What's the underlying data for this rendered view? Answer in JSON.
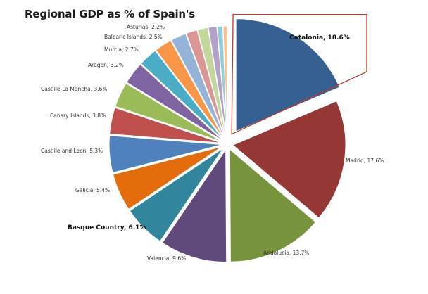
{
  "chart_data": {
    "type": "pie",
    "title": "Regional GDP as % of Spain's",
    "slices": [
      {
        "name": "Catalonia",
        "value": 18.6,
        "label": "Catalonia, 18.6%",
        "color": "#376092",
        "bold": true,
        "highlighted": true
      },
      {
        "name": "Madrid",
        "value": 17.6,
        "label": "Madrid, 17.6%",
        "color": "#953735",
        "bold": false
      },
      {
        "name": "Andalucia",
        "value": 13.7,
        "label": "Andalucia, 13.7%",
        "color": "#77933C",
        "bold": false
      },
      {
        "name": "Valencia",
        "value": 9.6,
        "label": "Valencia, 9.6%",
        "color": "#604A7B",
        "bold": false
      },
      {
        "name": "Basque Country",
        "value": 6.1,
        "label": "Basque Country, 6.1%",
        "color": "#31859C",
        "bold": true
      },
      {
        "name": "Galicia",
        "value": 5.4,
        "label": "Galicia, 5.4%",
        "color": "#E46C0A",
        "bold": false
      },
      {
        "name": "Castille and Leon",
        "value": 5.3,
        "label": "Castille and Leon, 5.3%",
        "color": "#4F81BD",
        "bold": false
      },
      {
        "name": "Canary Islands",
        "value": 3.8,
        "label": "Canary Islands, 3.8%",
        "color": "#C0504D",
        "bold": false
      },
      {
        "name": "Castille-La Mancha",
        "value": 3.6,
        "label": "Castille-La Mancha, 3.6%",
        "color": "#9BBB59",
        "bold": false
      },
      {
        "name": "Aragon",
        "value": 3.2,
        "label": "Aragon, 3.2%",
        "color": "#8064A2",
        "bold": false
      },
      {
        "name": "Murcia",
        "value": 2.7,
        "label": "Murcia, 2.7%",
        "color": "#4BACC6",
        "bold": false
      },
      {
        "name": "Balearic Islands",
        "value": 2.5,
        "label": "Balearic Islands, 2.5%",
        "color": "#F79646",
        "bold": false
      },
      {
        "name": "Asturias",
        "value": 2.2,
        "label": "Asturias, 2.2%",
        "color": "#95B3D7",
        "bold": false
      },
      {
        "name": "Other 1",
        "value": 1.6,
        "label": "",
        "color": "#D99694",
        "bold": false
      },
      {
        "name": "Other 2",
        "value": 1.5,
        "label": "",
        "color": "#C3D69B",
        "bold": false
      },
      {
        "name": "Other 3",
        "value": 1.2,
        "label": "",
        "color": "#B3A2C7",
        "bold": false
      },
      {
        "name": "Other 4",
        "value": 0.8,
        "label": "",
        "color": "#93CDDD",
        "bold": false
      },
      {
        "name": "Other 5",
        "value": 0.6,
        "label": "",
        "color": "#FAC090",
        "bold": false
      }
    ]
  }
}
